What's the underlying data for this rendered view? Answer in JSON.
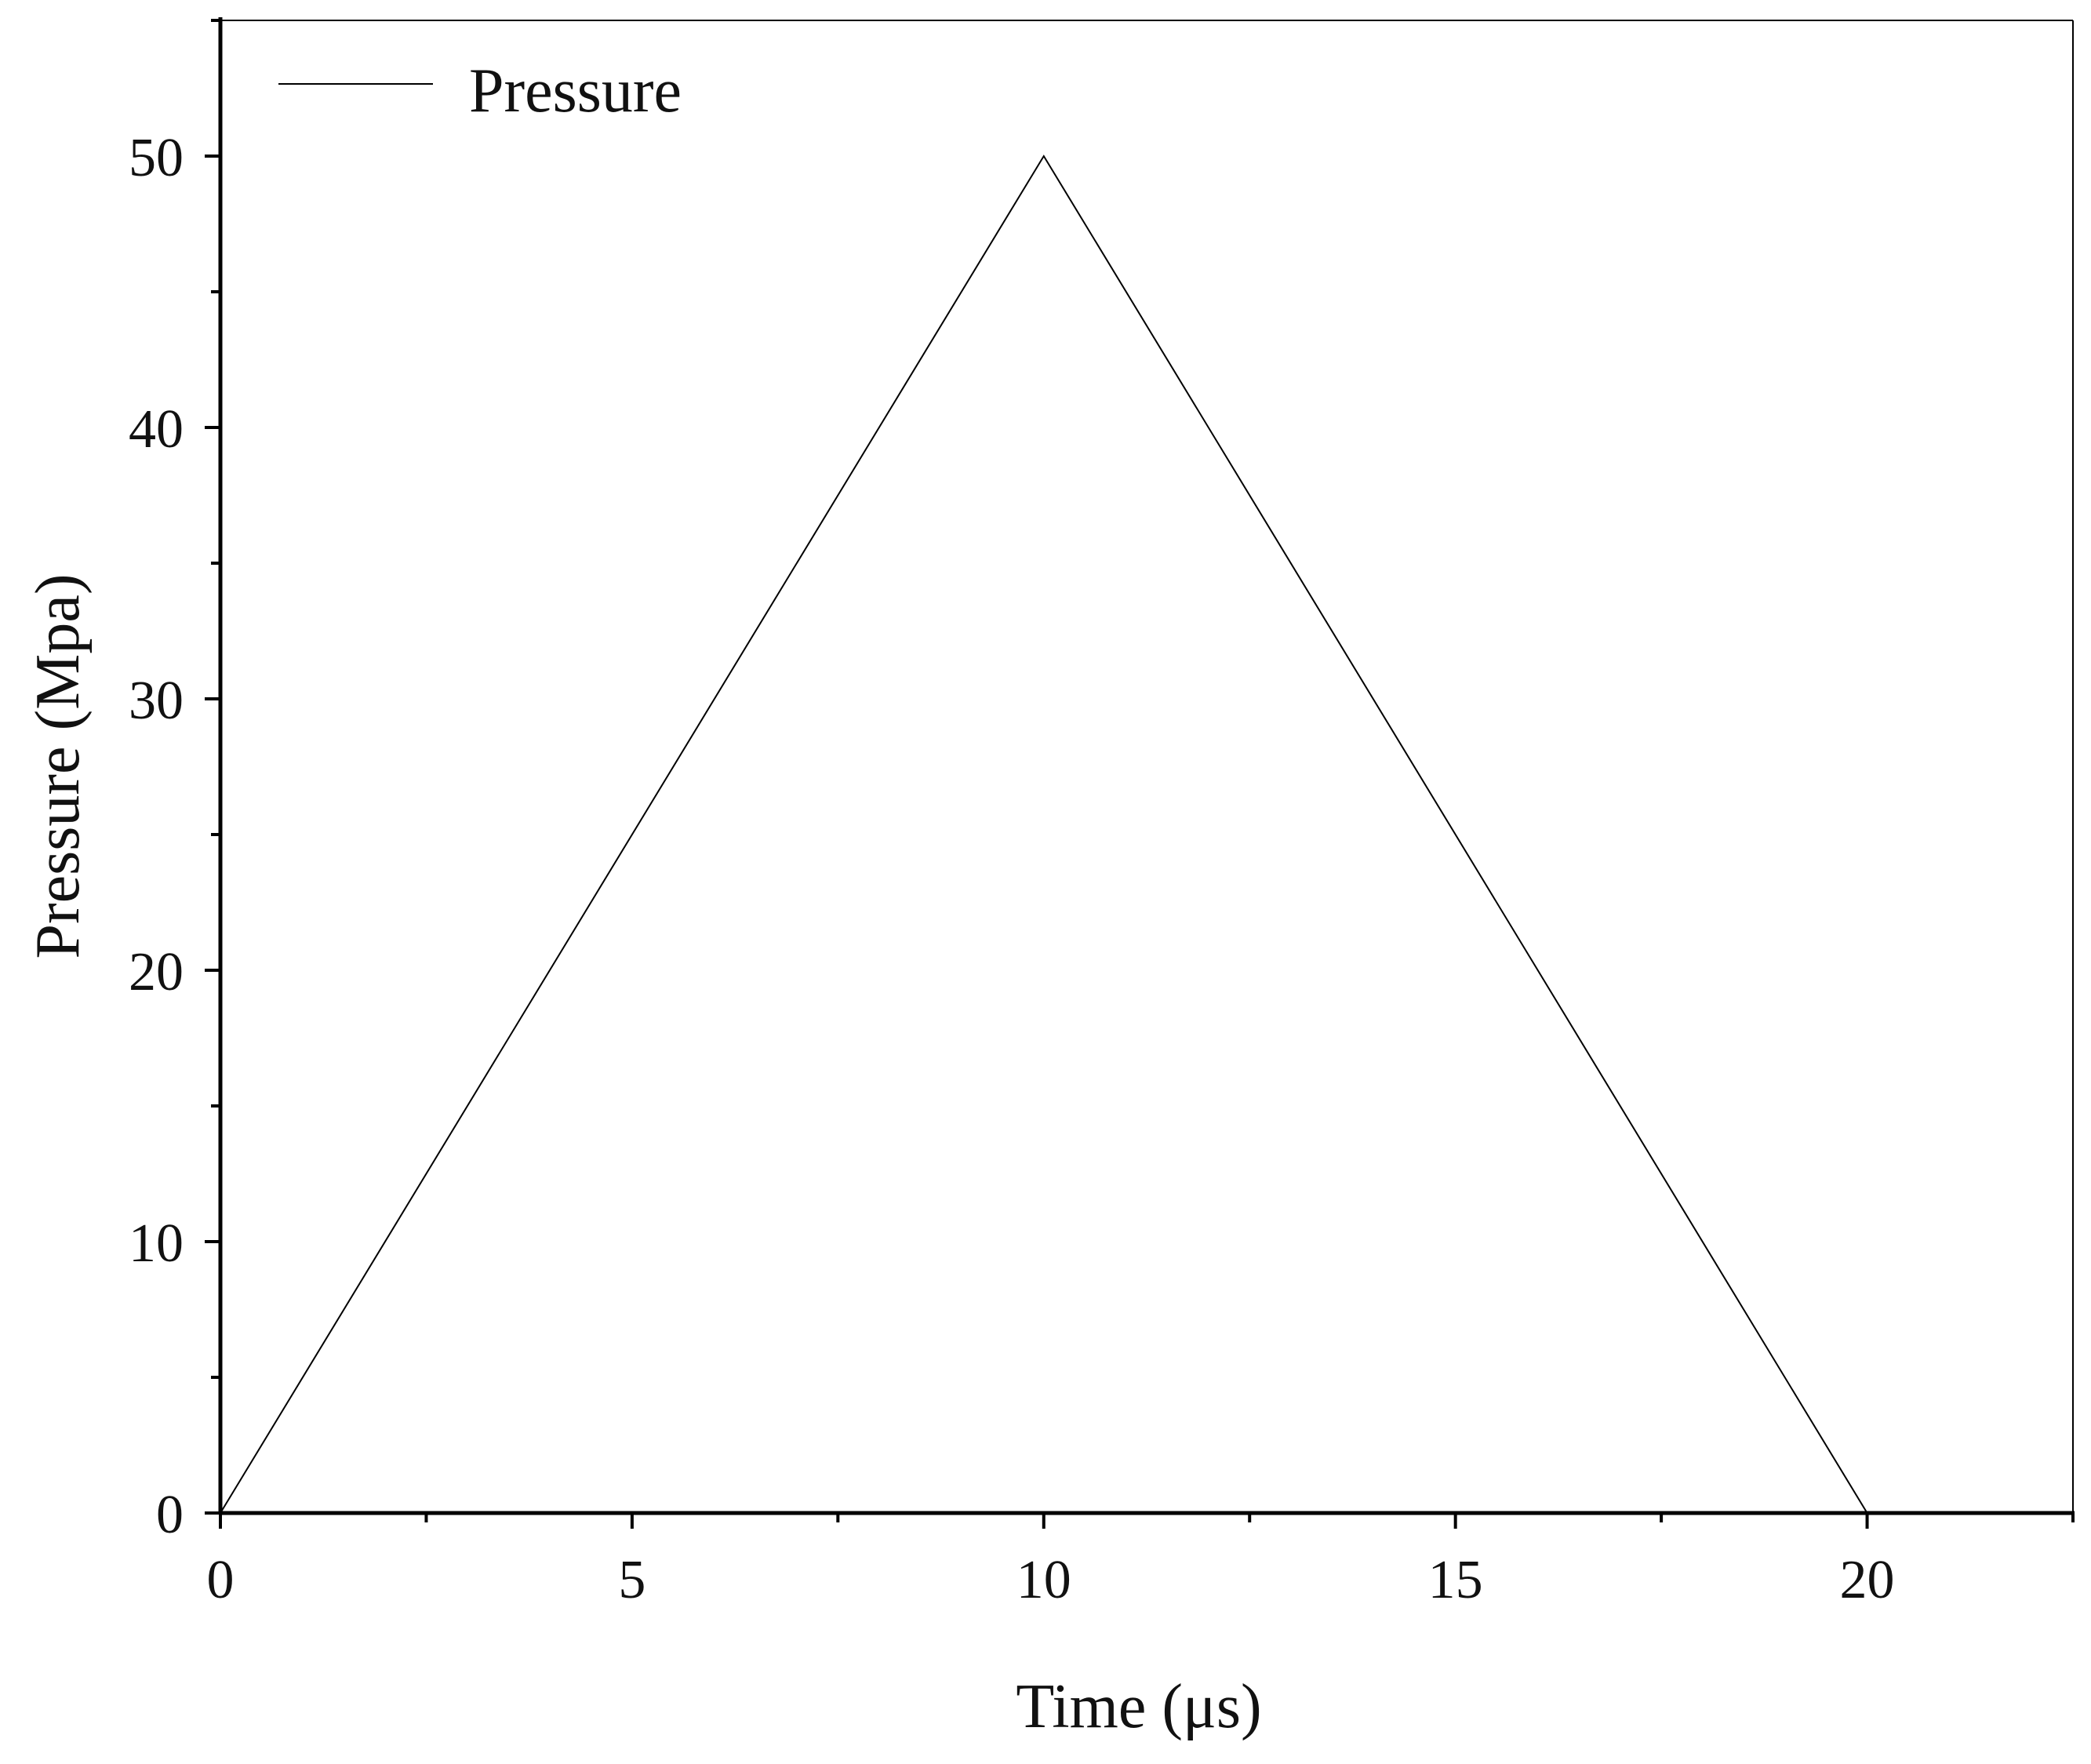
{
  "chart_data": {
    "type": "line",
    "title": "",
    "xlabel": "Time (μs)",
    "ylabel": "Pressure (Mpa)",
    "xlim": [
      0,
      22.5
    ],
    "ylim": [
      0,
      55
    ],
    "x_ticks": [
      0,
      5,
      10,
      15,
      20
    ],
    "y_ticks": [
      0,
      10,
      20,
      30,
      40,
      50
    ],
    "x_tick_labels": [
      "0",
      "5",
      "10",
      "15",
      "20"
    ],
    "y_tick_labels": [
      "0",
      "10",
      "20",
      "30",
      "40",
      "50"
    ],
    "x_minor_ticks": [
      2.5,
      7.5,
      12.5,
      17.5,
      22.5
    ],
    "y_minor_ticks": [
      5,
      15,
      25,
      35,
      45,
      55
    ],
    "grid": false,
    "legend_position": "top-left",
    "series": [
      {
        "name": "Pressure",
        "color": "#000000",
        "x": [
          0,
          10,
          20
        ],
        "y": [
          0,
          50,
          0
        ]
      }
    ]
  }
}
